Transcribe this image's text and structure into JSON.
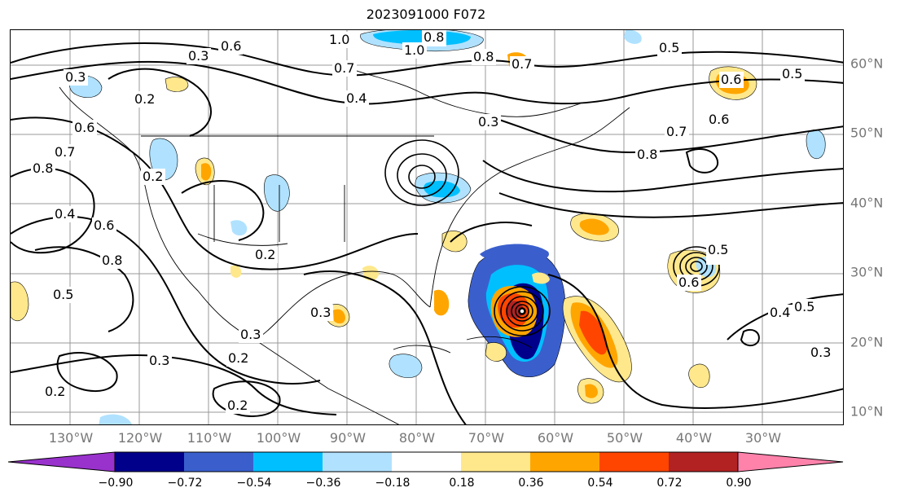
{
  "title": "2023091000 F072",
  "map": {
    "lat_labels": [
      "60°N",
      "50°N",
      "40°N",
      "30°N",
      "20°N",
      "10°N"
    ],
    "lon_labels": [
      "130°W",
      "120°W",
      "110°W",
      "100°W",
      "90°W",
      "80°W",
      "70°W",
      "60°W",
      "50°W",
      "40°W",
      "30°W"
    ],
    "contour_labels": [
      "1.0",
      "0.8",
      "1.0",
      "0.6",
      "0.3",
      "0.7",
      "0.8",
      "0.7",
      "0.5",
      "0.6",
      "0.5",
      "0.6",
      "0.7",
      "0.8",
      "0.4",
      "0.3",
      "0.3",
      "0.2",
      "0.6",
      "0.8",
      "0.7",
      "0.2",
      "0.4",
      "0.6",
      "0.8",
      "0.5",
      "0.2",
      "0.3",
      "0.3",
      "0.2",
      "0.3",
      "0.2",
      "0.2",
      "0.6",
      "0.5",
      "0.4",
      "0.5",
      "0.3"
    ]
  },
  "colorbar": {
    "ticks": [
      "−0.90",
      "−0.72",
      "−0.54",
      "−0.36",
      "−0.18",
      "0.18",
      "0.36",
      "0.54",
      "0.72",
      "0.90"
    ],
    "colors": [
      "#9932cc",
      "#00008b",
      "#3a5fcd",
      "#00bfff",
      "#b0e2ff",
      "#ffffff",
      "#ffe88c",
      "#ffa500",
      "#ff4500",
      "#b22222",
      "#ff82ab"
    ]
  }
}
